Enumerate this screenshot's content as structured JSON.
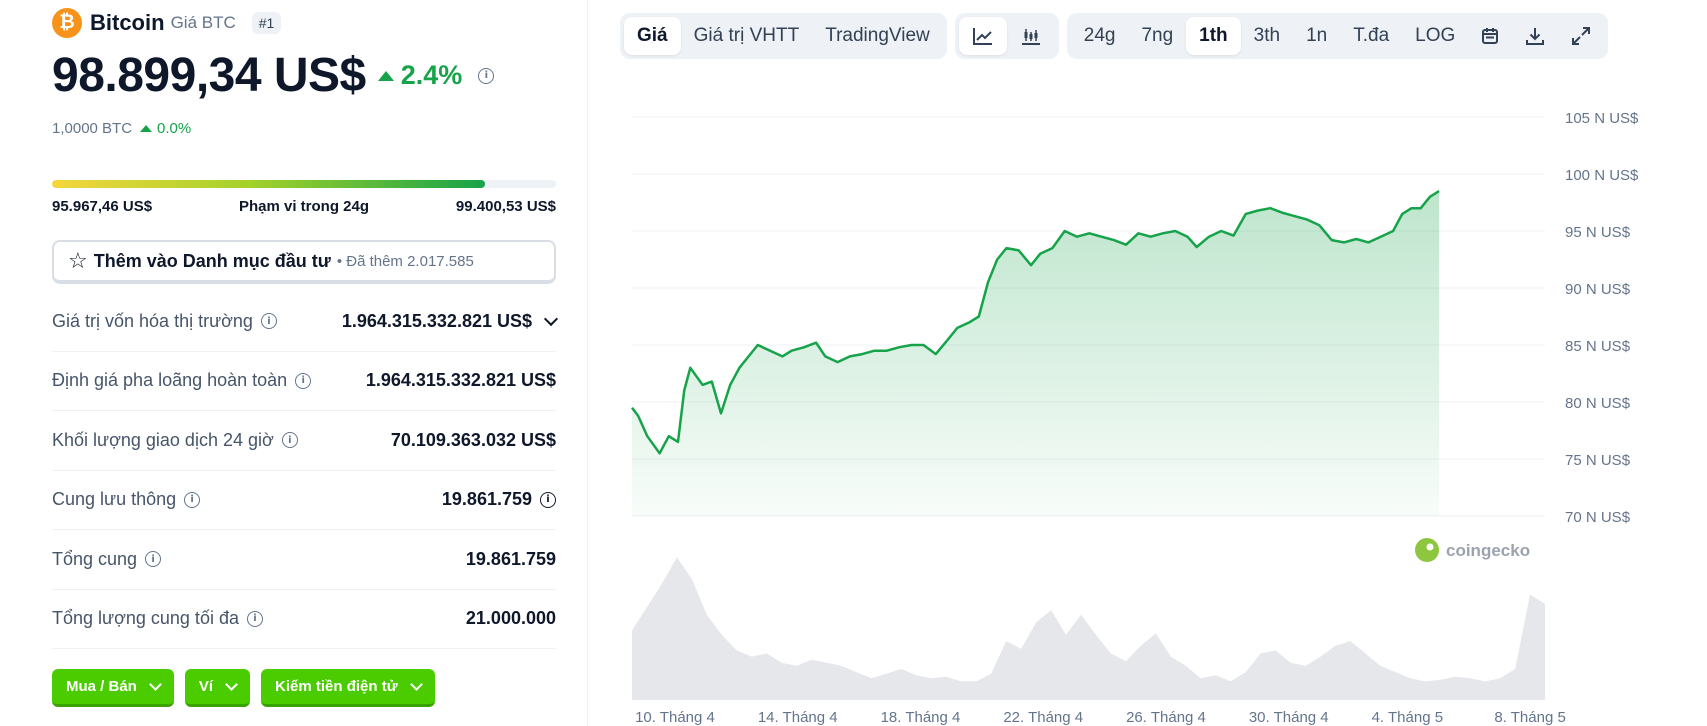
{
  "coin": {
    "logo_glyph": "₿",
    "name": "Bitcoin",
    "symbol_label": "Giá BTC",
    "rank": "#1",
    "price": "98.899,34 US$",
    "change_24h": "2.4%",
    "btc_amount": "1,0000 BTC",
    "btc_change": "0.0%"
  },
  "range": {
    "low": "95.967,46 US$",
    "label": "Phạm vi trong 24g",
    "high": "99.400,53 US$",
    "fill_fraction": 0.86
  },
  "watchlist": {
    "label": "Thêm vào Danh mục đầu tư",
    "count_text": "• Đã thêm 2.017.585"
  },
  "stats": [
    {
      "label": "Giá trị vốn hóa thị trường",
      "value": "1.964.315.332.821 US$"
    },
    {
      "label": "Định giá pha loãng hoàn toàn",
      "value": "1.964.315.332.821 US$"
    },
    {
      "label": "Khối lượng giao dịch 24 giờ",
      "value": "70.109.363.032 US$"
    },
    {
      "label": "Cung lưu thông",
      "value": "19.861.759"
    },
    {
      "label": "Tổng cung",
      "value": "19.861.759"
    },
    {
      "label": "Tổng lượng cung tối đa",
      "value": "21.000.000"
    }
  ],
  "actions": {
    "buy_sell": "Mua / Bán",
    "wallet": "Ví",
    "earn": "Kiếm tiền điện tử"
  },
  "toolbar": {
    "view_tabs": [
      "Giá",
      "Giá trị VHTT",
      "TradingView"
    ],
    "ranges": [
      "24g",
      "7ng",
      "1th",
      "3th",
      "1n",
      "T.đa",
      "LOG"
    ],
    "active_range": "1th"
  },
  "colors": {
    "up": "#16a34a",
    "line": "#16a34a",
    "area_top": "#bbf7d0",
    "volume": "#e5e7eb",
    "accent_button": "#4bcc00"
  },
  "chart_data": {
    "type": "area",
    "watermark": "coingecko",
    "ylim": [
      70000,
      105000
    ],
    "y_ticks": [
      {
        "value": 105000,
        "label": "105 N US$"
      },
      {
        "value": 100000,
        "label": "100 N US$"
      },
      {
        "value": 95000,
        "label": "95 N US$"
      },
      {
        "value": 90000,
        "label": "90 N US$"
      },
      {
        "value": 85000,
        "label": "85 N US$"
      },
      {
        "value": 80000,
        "label": "80 N US$"
      },
      {
        "value": 75000,
        "label": "75 N US$"
      },
      {
        "value": 70000,
        "label": "70 N US$"
      }
    ],
    "x_ticks": [
      {
        "day": 1,
        "label": "10. Tháng 4"
      },
      {
        "day": 5,
        "label": "14. Tháng 4"
      },
      {
        "day": 9,
        "label": "18. Tháng 4"
      },
      {
        "day": 13,
        "label": "22. Tháng 4"
      },
      {
        "day": 17,
        "label": "26. Tháng 4"
      },
      {
        "day": 21,
        "label": "30. Tháng 4"
      },
      {
        "day": 25,
        "label": "4. Tháng 5"
      },
      {
        "day": 29,
        "label": "8. Tháng 5"
      }
    ],
    "xlim": [
      0.9,
      30.65
    ],
    "series": [
      {
        "points": [
          [
            0.9,
            79500
          ],
          [
            1.1,
            78800
          ],
          [
            1.4,
            77000
          ],
          [
            1.8,
            75500
          ],
          [
            2.1,
            77000
          ],
          [
            2.4,
            76500
          ],
          [
            2.6,
            81000
          ],
          [
            2.8,
            83000
          ],
          [
            3.2,
            81500
          ],
          [
            3.5,
            81800
          ],
          [
            3.8,
            79000
          ],
          [
            4.1,
            81500
          ],
          [
            4.4,
            83000
          ],
          [
            4.7,
            84000
          ],
          [
            5.0,
            85000
          ],
          [
            5.4,
            84500
          ],
          [
            5.8,
            84000
          ],
          [
            6.1,
            84500
          ],
          [
            6.5,
            84800
          ],
          [
            6.9,
            85200
          ],
          [
            7.2,
            84000
          ],
          [
            7.6,
            83500
          ],
          [
            8.0,
            84000
          ],
          [
            8.4,
            84200
          ],
          [
            8.8,
            84500
          ],
          [
            9.2,
            84500
          ],
          [
            9.6,
            84800
          ],
          [
            10.0,
            85000
          ],
          [
            10.4,
            85000
          ],
          [
            10.8,
            84200
          ],
          [
            11.2,
            85500
          ],
          [
            11.5,
            86500
          ],
          [
            11.9,
            87000
          ],
          [
            12.2,
            87500
          ],
          [
            12.5,
            90500
          ],
          [
            12.8,
            92500
          ],
          [
            13.1,
            93500
          ],
          [
            13.5,
            93300
          ],
          [
            13.9,
            92000
          ],
          [
            14.2,
            93000
          ],
          [
            14.6,
            93500
          ],
          [
            15.0,
            95000
          ],
          [
            15.4,
            94500
          ],
          [
            15.8,
            94800
          ],
          [
            16.2,
            94500
          ],
          [
            16.6,
            94200
          ],
          [
            17.0,
            93800
          ],
          [
            17.4,
            94800
          ],
          [
            17.8,
            94500
          ],
          [
            18.2,
            94800
          ],
          [
            18.6,
            95000
          ],
          [
            19.0,
            94500
          ],
          [
            19.3,
            93600
          ],
          [
            19.7,
            94500
          ],
          [
            20.1,
            95000
          ],
          [
            20.5,
            94600
          ],
          [
            20.9,
            96500
          ],
          [
            21.3,
            96800
          ],
          [
            21.7,
            97000
          ],
          [
            22.1,
            96600
          ],
          [
            22.5,
            96300
          ],
          [
            22.9,
            96000
          ],
          [
            23.3,
            95500
          ],
          [
            23.7,
            94200
          ],
          [
            24.1,
            94000
          ],
          [
            24.5,
            94300
          ],
          [
            24.9,
            94000
          ],
          [
            25.3,
            94500
          ],
          [
            25.7,
            95000
          ],
          [
            26.0,
            96500
          ],
          [
            26.3,
            97000
          ],
          [
            26.6,
            97000
          ],
          [
            26.9,
            98000
          ],
          [
            27.2,
            98500
          ]
        ]
      }
    ],
    "volume": [
      0.45,
      0.6,
      0.75,
      0.92,
      0.78,
      0.55,
      0.42,
      0.32,
      0.28,
      0.3,
      0.24,
      0.22,
      0.26,
      0.24,
      0.22,
      0.18,
      0.14,
      0.17,
      0.2,
      0.16,
      0.14,
      0.15,
      0.12,
      0.12,
      0.17,
      0.38,
      0.33,
      0.5,
      0.58,
      0.42,
      0.55,
      0.42,
      0.3,
      0.25,
      0.35,
      0.43,
      0.28,
      0.22,
      0.14,
      0.16,
      0.12,
      0.18,
      0.3,
      0.32,
      0.24,
      0.22,
      0.28,
      0.35,
      0.38,
      0.3,
      0.22,
      0.18,
      0.14,
      0.12,
      0.13,
      0.15,
      0.14,
      0.12,
      0.14,
      0.2,
      0.68,
      0.62
    ]
  }
}
